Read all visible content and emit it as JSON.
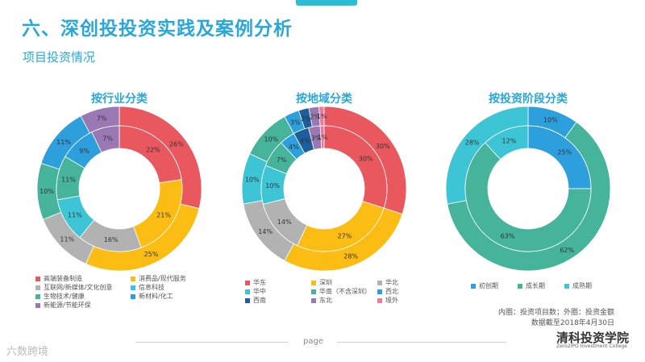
{
  "header": {
    "title": "六、深创投投资实践及案例分析",
    "subtitle": "项目投资情况"
  },
  "notes": {
    "line1": "内圈：投资项目数；外圈：投资金额",
    "line2": "数据截至2018年4月30日"
  },
  "footer": {
    "page_label": "page",
    "brand": "清科投资学院",
    "brand_sub": "Zero2IPO Investment College",
    "watermark": "六数跨境"
  },
  "chart_data": [
    {
      "type": "donut",
      "title": "按行业分类",
      "categories": [
        "高端装备制造",
        "消费品/现代服务",
        "互联网/新媒体/文化创意",
        "信息科技",
        "生物技术/健康",
        "新材料/化工",
        "新能源/节能环保"
      ],
      "colors": [
        "#e8585e",
        "#fbbd13",
        "#b2b2b2",
        "#3dc5d6",
        "#45b49b",
        "#2e9fdd",
        "#9a78b4"
      ],
      "series": [
        {
          "ring": "outer",
          "values": [
            26,
            25,
            11,
            0,
            10,
            11,
            7
          ]
        },
        {
          "ring": "inner",
          "values": [
            22,
            21,
            16,
            11,
            11,
            9,
            7
          ]
        }
      ]
    },
    {
      "type": "donut",
      "title": "按地域分类",
      "categories": [
        "华东",
        "深圳",
        "华北",
        "华中",
        "华南（不含深圳）",
        "西北",
        "西南",
        "东北",
        "境外"
      ],
      "colors": [
        "#e8585e",
        "#fbbd13",
        "#b2b2b2",
        "#3dc5d6",
        "#45b49b",
        "#2e9fdd",
        "#1d5e9c",
        "#9a78b4",
        "#ea7aa1"
      ],
      "series": [
        {
          "ring": "outer",
          "values": [
            30,
            28,
            14,
            10,
            10,
            3,
            2,
            2,
            1
          ]
        },
        {
          "ring": "inner",
          "values": [
            30,
            27,
            14,
            10,
            7,
            4,
            4,
            3,
            1
          ]
        }
      ]
    },
    {
      "type": "donut",
      "title": "按投资阶段分类",
      "categories": [
        "初创期",
        "成长期",
        "成熟期"
      ],
      "colors": [
        "#2e9fdd",
        "#45b49b",
        "#3dc5d6"
      ],
      "series": [
        {
          "ring": "outer",
          "values": [
            10,
            62,
            28
          ]
        },
        {
          "ring": "inner",
          "values": [
            25,
            63,
            12
          ]
        }
      ]
    }
  ]
}
